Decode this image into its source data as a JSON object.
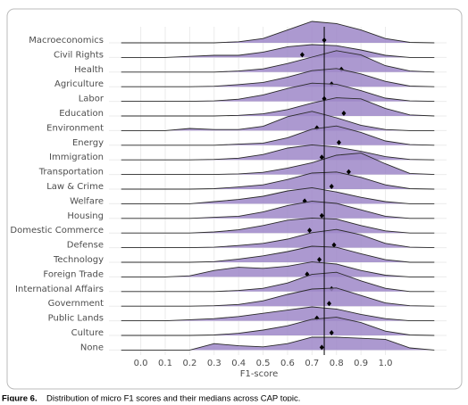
{
  "chart_data": {
    "type": "ridgeline",
    "x_label": "F1-score",
    "caption_label": "Figure 6.",
    "caption": "Distribution of micro F1 scores and their medians across CAP topic.",
    "xlim": [
      -0.13,
      1.25
    ],
    "xticks": [
      {
        "value": 0,
        "label": "0.0"
      },
      0.1,
      0.2,
      0.3,
      0.4,
      0.5,
      0.6,
      0.7,
      0.8,
      0.9,
      {
        "value": 1,
        "label": "1.0"
      }
    ],
    "reference_line": 0.75,
    "grid": true,
    "color": "#9d87c8",
    "density_x": [
      -0.08,
      0,
      0.1,
      0.2,
      0.3,
      0.4,
      0.5,
      0.6,
      0.7,
      0.8,
      0.9,
      1.0,
      1.1,
      1.2
    ],
    "series": [
      {
        "name": "Macroeconomics",
        "median": 0.75,
        "density": [
          0,
          0,
          0,
          0,
          0,
          0.05,
          0.2,
          0.6,
          1,
          0.9,
          0.6,
          0.2,
          0.02,
          0
        ]
      },
      {
        "name": "Civil Rights",
        "median": 0.66,
        "density": [
          0,
          0,
          0,
          0.05,
          0.1,
          0.1,
          0.25,
          0.5,
          0.6,
          0.55,
          0.35,
          0.1,
          0,
          0
        ]
      },
      {
        "name": "Health",
        "median": 0.82,
        "density": [
          0,
          0,
          0,
          0,
          0,
          0.05,
          0.15,
          0.4,
          0.7,
          1,
          0.8,
          0.3,
          0.05,
          0
        ]
      },
      {
        "name": "Agriculture",
        "median": 0.78,
        "density": [
          0,
          0,
          0,
          0,
          0.02,
          0.1,
          0.2,
          0.45,
          0.75,
          0.85,
          0.6,
          0.25,
          0.03,
          0
        ]
      },
      {
        "name": "Labor",
        "median": 0.75,
        "density": [
          0,
          0,
          0,
          0,
          0.02,
          0.1,
          0.3,
          0.6,
          0.85,
          0.8,
          0.5,
          0.15,
          0.02,
          0
        ]
      },
      {
        "name": "Education",
        "median": 0.83,
        "density": [
          0,
          0,
          0,
          0,
          0,
          0.03,
          0.1,
          0.3,
          0.6,
          0.85,
          0.8,
          0.35,
          0.05,
          0
        ]
      },
      {
        "name": "Environment",
        "median": 0.72,
        "density": [
          0,
          0,
          0,
          0.1,
          0.05,
          0.05,
          0.2,
          0.65,
          0.9,
          0.6,
          0.25,
          0.05,
          0,
          0
        ]
      },
      {
        "name": "Energy",
        "median": 0.81,
        "density": [
          0,
          0,
          0,
          0,
          0,
          0.05,
          0.1,
          0.35,
          0.75,
          0.9,
          0.6,
          0.2,
          0.03,
          0
        ]
      },
      {
        "name": "Immigration",
        "median": 0.74,
        "density": [
          0,
          0,
          0,
          0,
          0.02,
          0.08,
          0.25,
          0.55,
          0.7,
          0.6,
          0.4,
          0.15,
          0.02,
          0
        ]
      },
      {
        "name": "Transportation",
        "median": 0.85,
        "density": [
          0,
          0,
          0,
          0,
          0,
          0.03,
          0.1,
          0.3,
          0.55,
          0.9,
          1,
          0.5,
          0.05,
          0
        ]
      },
      {
        "name": "Law & Crime",
        "median": 0.78,
        "density": [
          0,
          0,
          0,
          0,
          0.02,
          0.1,
          0.2,
          0.45,
          0.75,
          0.8,
          0.55,
          0.2,
          0.02,
          0
        ]
      },
      {
        "name": "Welfare",
        "median": 0.67,
        "density": [
          0,
          0,
          0,
          0,
          0.1,
          0.2,
          0.35,
          0.6,
          0.75,
          0.55,
          0.3,
          0.1,
          0,
          0
        ]
      },
      {
        "name": "Housing",
        "median": 0.74,
        "density": [
          0,
          0,
          0,
          0,
          0.05,
          0.1,
          0.3,
          0.6,
          0.8,
          0.7,
          0.4,
          0.1,
          0,
          0
        ]
      },
      {
        "name": "Domestic Commerce",
        "median": 0.69,
        "density": [
          0,
          0,
          0,
          0,
          0.05,
          0.15,
          0.35,
          0.6,
          0.7,
          0.65,
          0.35,
          0.1,
          0,
          0
        ]
      },
      {
        "name": "Defense",
        "median": 0.79,
        "density": [
          0,
          0,
          0,
          0,
          0.02,
          0.1,
          0.2,
          0.4,
          0.7,
          0.85,
          0.6,
          0.2,
          0.02,
          0
        ]
      },
      {
        "name": "Technology",
        "median": 0.73,
        "density": [
          0,
          0,
          0,
          0,
          0.03,
          0.15,
          0.3,
          0.5,
          0.75,
          0.7,
          0.4,
          0.12,
          0,
          0
        ]
      },
      {
        "name": "Foreign Trade",
        "median": 0.68,
        "density": [
          0,
          0,
          0,
          0.05,
          0.3,
          0.45,
          0.4,
          0.5,
          0.7,
          0.6,
          0.3,
          0.08,
          0,
          0
        ]
      },
      {
        "name": "International Affairs",
        "median": 0.78,
        "density": [
          0,
          0,
          0,
          0,
          0,
          0.05,
          0.15,
          0.4,
          0.8,
          0.9,
          0.5,
          0.15,
          0,
          0
        ]
      },
      {
        "name": "Government",
        "median": 0.77,
        "density": [
          0,
          0,
          0,
          0,
          0.02,
          0.08,
          0.25,
          0.55,
          0.8,
          0.85,
          0.5,
          0.15,
          0.02,
          0
        ]
      },
      {
        "name": "Public Lands",
        "median": 0.72,
        "density": [
          0,
          0,
          0,
          0.05,
          0.1,
          0.2,
          0.35,
          0.5,
          0.65,
          0.55,
          0.3,
          0.1,
          0,
          0
        ]
      },
      {
        "name": "Culture",
        "median": 0.78,
        "density": [
          0,
          0,
          0,
          0,
          0.02,
          0.1,
          0.25,
          0.45,
          0.75,
          0.85,
          0.6,
          0.2,
          0.02,
          0
        ]
      },
      {
        "name": "None",
        "median": 0.74,
        "density": [
          0,
          0,
          0,
          0,
          0.3,
          0.2,
          0.15,
          0.3,
          0.6,
          0.6,
          0.55,
          0.5,
          0.1,
          0
        ]
      }
    ]
  }
}
